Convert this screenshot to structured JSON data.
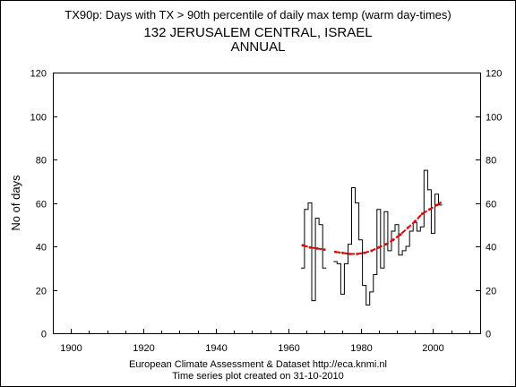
{
  "header": {
    "title": "TX90p: Days with TX > 90th percentile of daily max temp (warm day-times)",
    "station": "132 JERUSALEM CENTRAL, ISRAEL",
    "period": "ANNUAL"
  },
  "footer": {
    "line1": "European Climate Assessment & Dataset  http://eca.knmi.nl",
    "line2": "Time series plot created on 31-10-2010"
  },
  "chart_data": {
    "type": "line",
    "ylabel": "No of days",
    "xlim": [
      1895,
      2013
    ],
    "ylim": [
      0,
      120
    ],
    "x_ticks": [
      1900,
      1920,
      1940,
      1960,
      1980,
      2000
    ],
    "y_ticks": [
      0,
      20,
      40,
      60,
      80,
      100,
      120
    ],
    "y_ticks_right": [
      0,
      20,
      40,
      60,
      80,
      100,
      120
    ],
    "grid": false,
    "colors": {
      "annual": "#000000",
      "trend": "#dd0000"
    },
    "series": [
      {
        "style": "step",
        "segments": [
          {
            "x": [
              1964,
              1965,
              1966,
              1967,
              1968,
              1969,
              1970
            ],
            "y": [
              30,
              57,
              60,
              15,
              53,
              50,
              30
            ]
          },
          {
            "x": [
              1973,
              1974,
              1975,
              1976,
              1977,
              1978,
              1979,
              1980,
              1981,
              1982,
              1983,
              1984,
              1985,
              1986,
              1987,
              1988,
              1989,
              1990,
              1991,
              1992,
              1993,
              1994,
              1995,
              1996,
              1997,
              1998,
              1999,
              2000,
              2001,
              2002
            ],
            "y": [
              33,
              32,
              18,
              32,
              41,
              67,
              60,
              43,
              22,
              13,
              19,
              27,
              57,
              30,
              56,
              38,
              47,
              50,
              36,
              38,
              40,
              47,
              51,
              47,
              49,
              75,
              66,
              46,
              64,
              59
            ]
          }
        ]
      },
      {
        "style": "dashed",
        "segments": [
          {
            "x": [
              1964,
              1966,
              1968,
              1970
            ],
            "y": [
              40.5,
              39.5,
              39,
              38.5
            ]
          },
          {
            "x": [
              1973,
              1975,
              1977,
              1979,
              1981,
              1983,
              1985,
              1987,
              1989,
              1991,
              1993,
              1995,
              1997,
              1999,
              2001,
              2002
            ],
            "y": [
              37.5,
              37,
              36.5,
              36.5,
              37,
              38,
              39.5,
              41,
              43,
              45.5,
              48.5,
              51.5,
              55,
              57,
              59,
              60
            ]
          }
        ]
      }
    ]
  }
}
